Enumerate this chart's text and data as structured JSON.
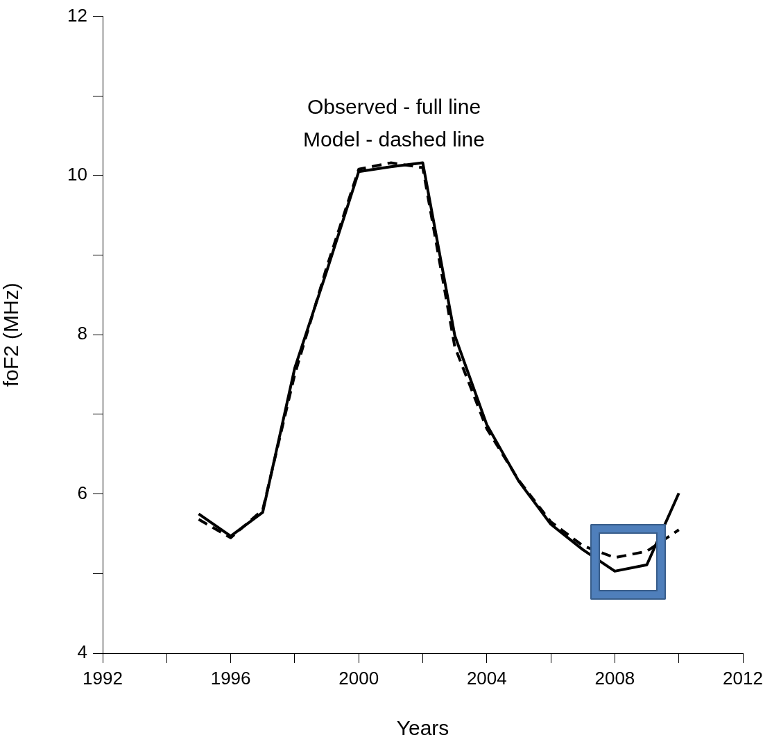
{
  "chart_data": {
    "type": "line",
    "xlabel": "Years",
    "ylabel": "foF2 (MHz)",
    "annotations": [
      "Observed - full line",
      "Model - dashed line"
    ],
    "x": [
      1995,
      1996,
      1997,
      1998,
      1999,
      2000,
      2001,
      2002,
      2003,
      2004,
      2005,
      2006,
      2007,
      2008,
      2009,
      2010
    ],
    "series": [
      {
        "color": "#000000",
        "line_style": "solid",
        "values": [
          5.75,
          5.47,
          5.77,
          7.58,
          8.8,
          10.05,
          10.11,
          10.16,
          7.99,
          6.87,
          6.16,
          5.62,
          5.3,
          5.03,
          5.11,
          6.01
        ]
      },
      {
        "color": "#000000",
        "line_style": "dashed",
        "values": [
          5.68,
          5.45,
          5.8,
          7.5,
          8.85,
          10.08,
          10.16,
          10.1,
          7.85,
          6.82,
          6.17,
          5.65,
          5.35,
          5.2,
          5.28,
          5.55
        ]
      }
    ],
    "xlim": [
      1992,
      2012
    ],
    "xticks": [
      1992,
      {
        "value": 1994,
        "label": null
      },
      1996,
      {
        "value": 1998,
        "label": null
      },
      2000,
      {
        "value": 2002,
        "label": null
      },
      2004,
      {
        "value": 2006,
        "label": null
      },
      2008,
      {
        "value": 2010,
        "label": null
      },
      2012
    ],
    "ylim": [
      4,
      12
    ],
    "yticks": [
      4,
      {
        "value": 5,
        "label": null
      },
      6,
      {
        "value": 7,
        "label": null
      },
      8,
      {
        "value": 9,
        "label": null
      },
      10,
      {
        "value": 11,
        "label": null
      },
      12
    ],
    "grid": false,
    "legend": false,
    "marker": "none"
  }
}
